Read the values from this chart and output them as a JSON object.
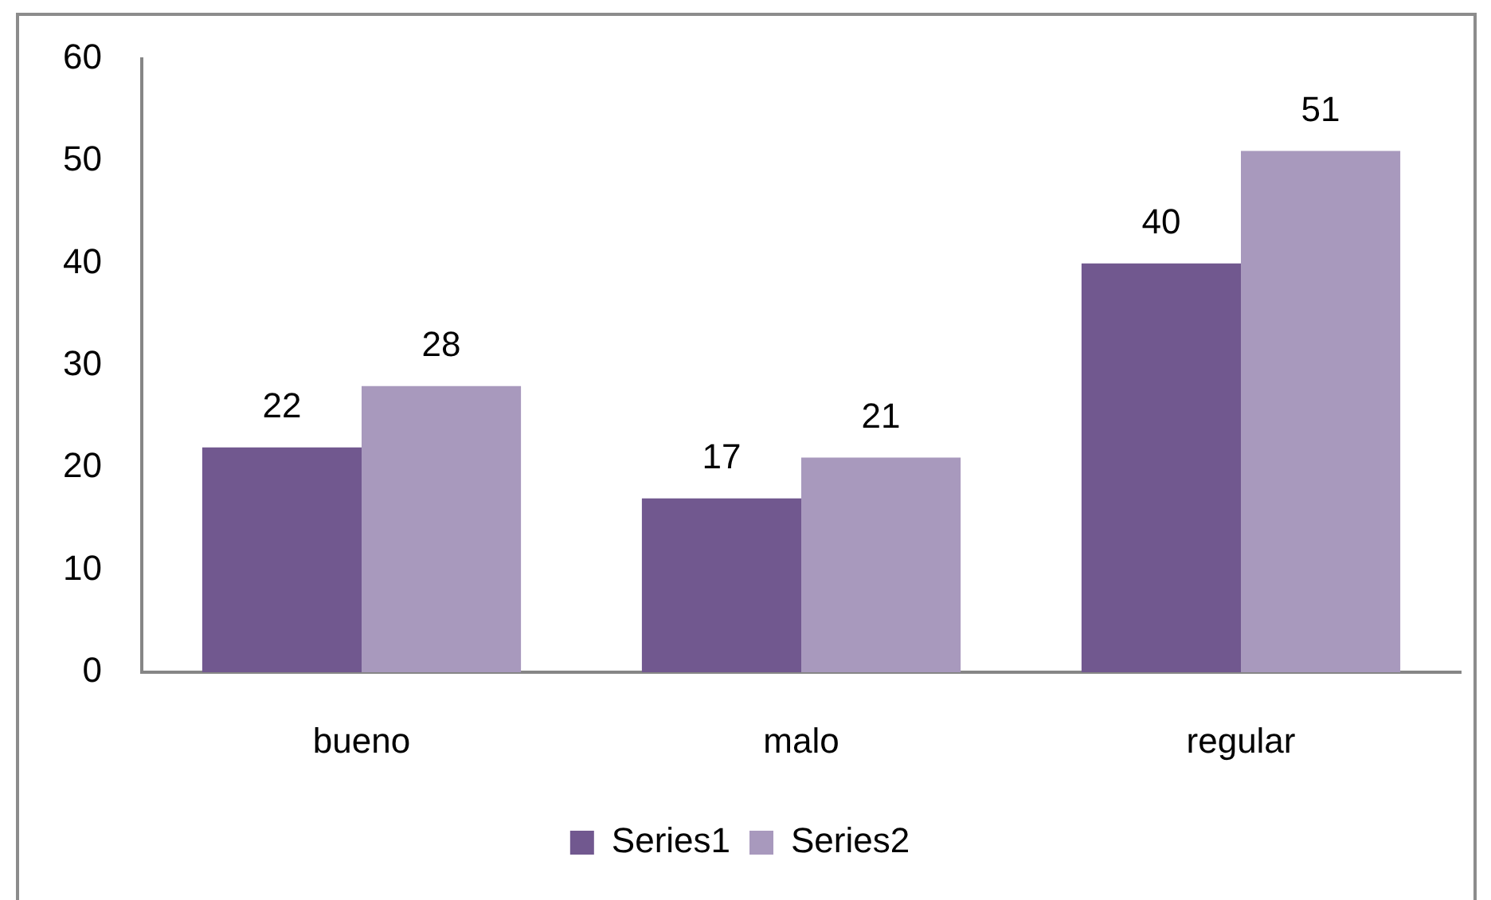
{
  "chart_data": {
    "type": "bar",
    "categories": [
      "bueno",
      "malo",
      "regular"
    ],
    "series": [
      {
        "name": "Series1",
        "color": "#71588f",
        "values": [
          22,
          17,
          40
        ]
      },
      {
        "name": "Series2",
        "color": "#a899bd",
        "values": [
          28,
          21,
          51
        ]
      }
    ],
    "ylim": [
      0,
      60
    ],
    "yticks": [
      0,
      10,
      20,
      30,
      40,
      50,
      60
    ],
    "grid": false,
    "legend": "bottom",
    "data_labels": true
  }
}
